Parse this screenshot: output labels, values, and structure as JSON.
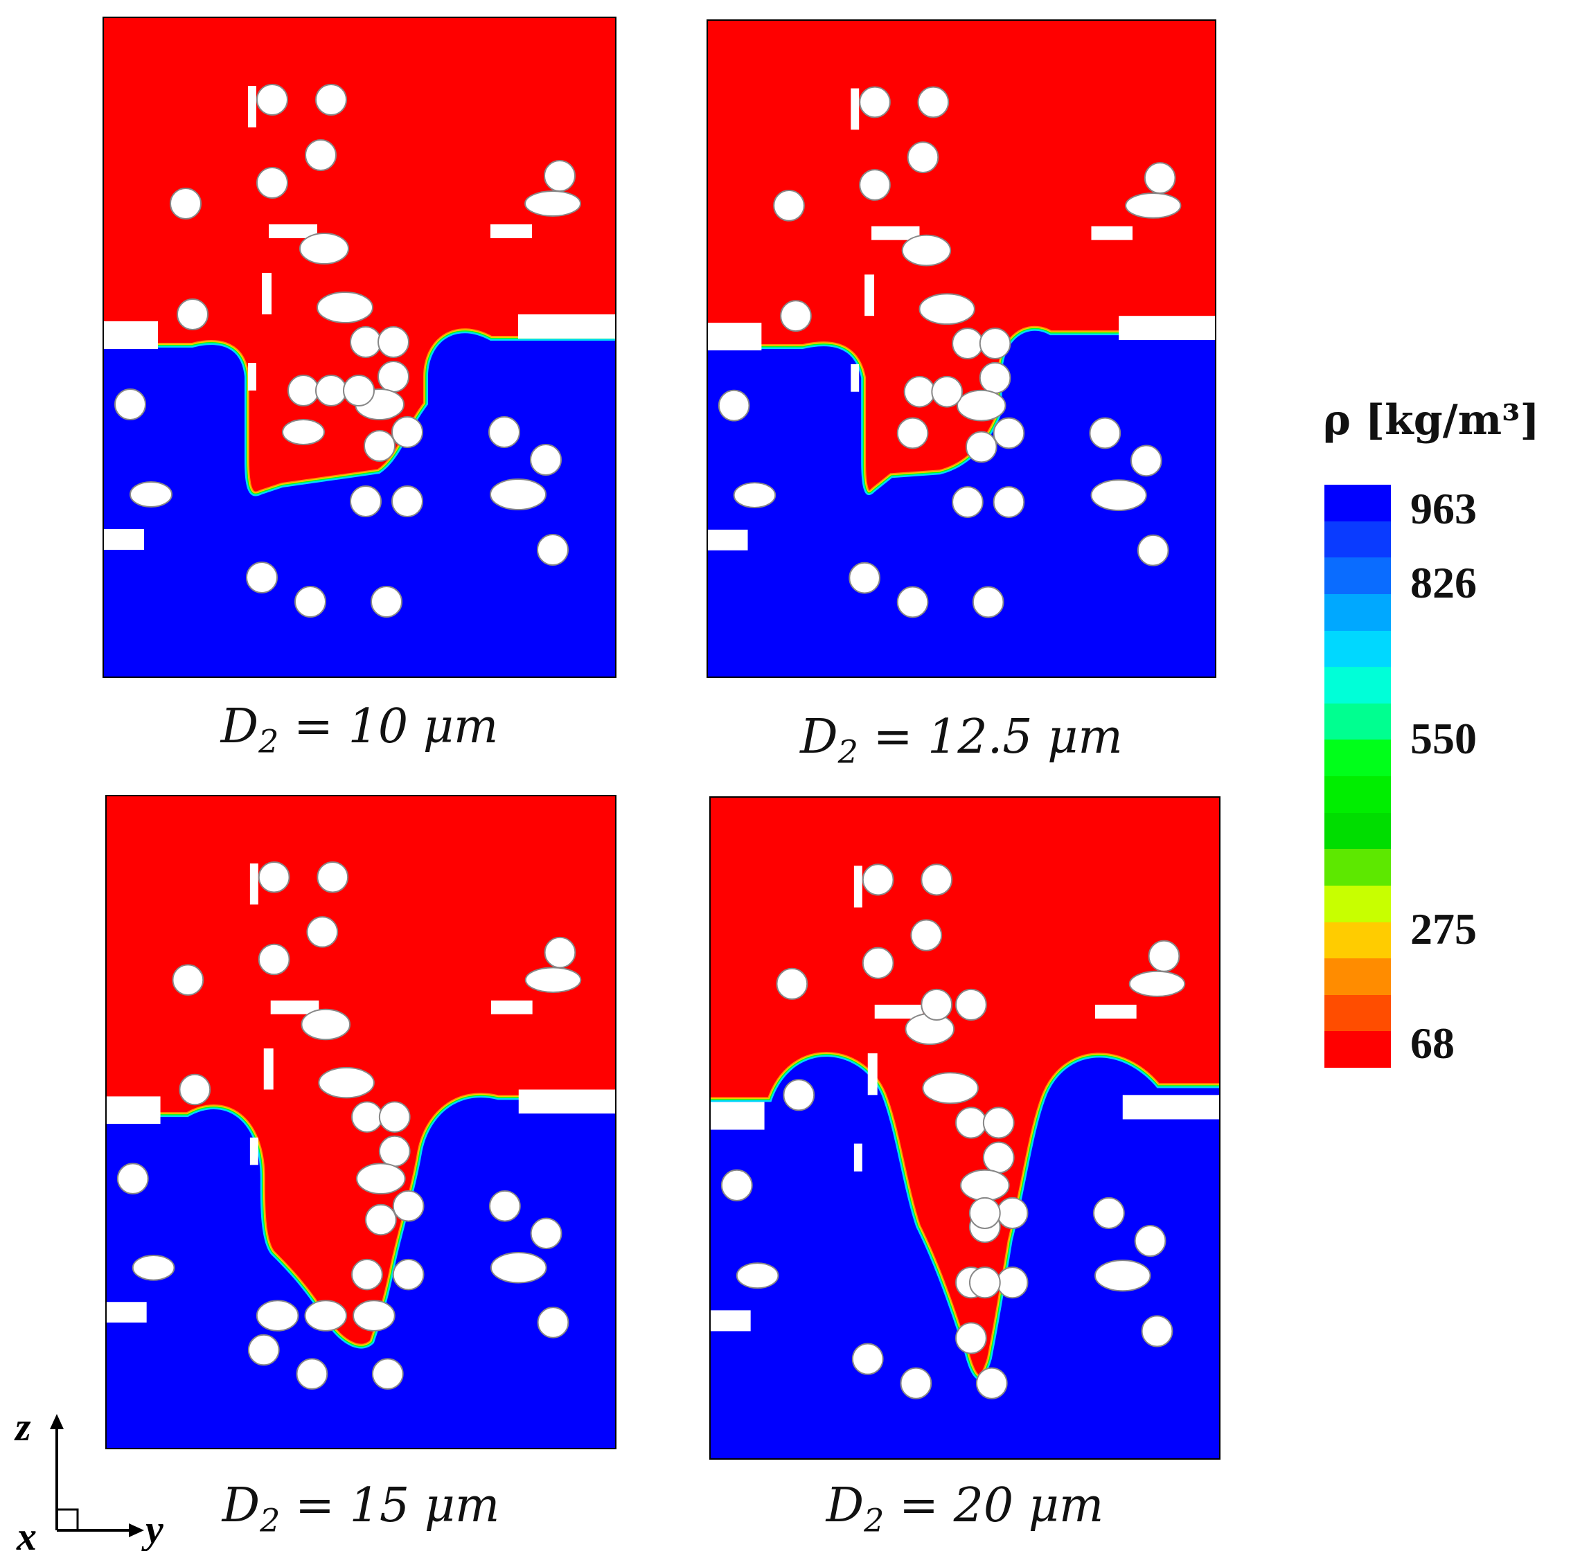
{
  "panels": [
    {
      "label": "D",
      "sub": "2",
      "rest": " = 10 μm",
      "variant": 0
    },
    {
      "label": "D",
      "sub": "2",
      "rest": " = 12.5 μm",
      "variant": 1
    },
    {
      "label": "D",
      "sub": "2",
      "rest": " = 15 μm",
      "variant": 2
    },
    {
      "label": "D",
      "sub": "2",
      "rest": " = 20 μm",
      "variant": 3
    }
  ],
  "colorbar": {
    "title": "ρ [kg/m³]",
    "ticks": [
      "963",
      "826",
      "550",
      "275",
      "68"
    ],
    "colors": [
      "#0000ff",
      "#0a3bff",
      "#0a6cff",
      "#00a8ff",
      "#00d8ff",
      "#00ffd8",
      "#00ff90",
      "#00ff1a",
      "#00ee00",
      "#00dd00",
      "#5de800",
      "#c8ff00",
      "#ffcc00",
      "#ff8c00",
      "#ff4d00",
      "#ff0000"
    ],
    "liquid_color": "#0000ff",
    "vapor_color": "#ff0000",
    "particle_color": "#ffffff"
  },
  "axes": {
    "z": "z",
    "y": "y",
    "x": "x"
  }
}
